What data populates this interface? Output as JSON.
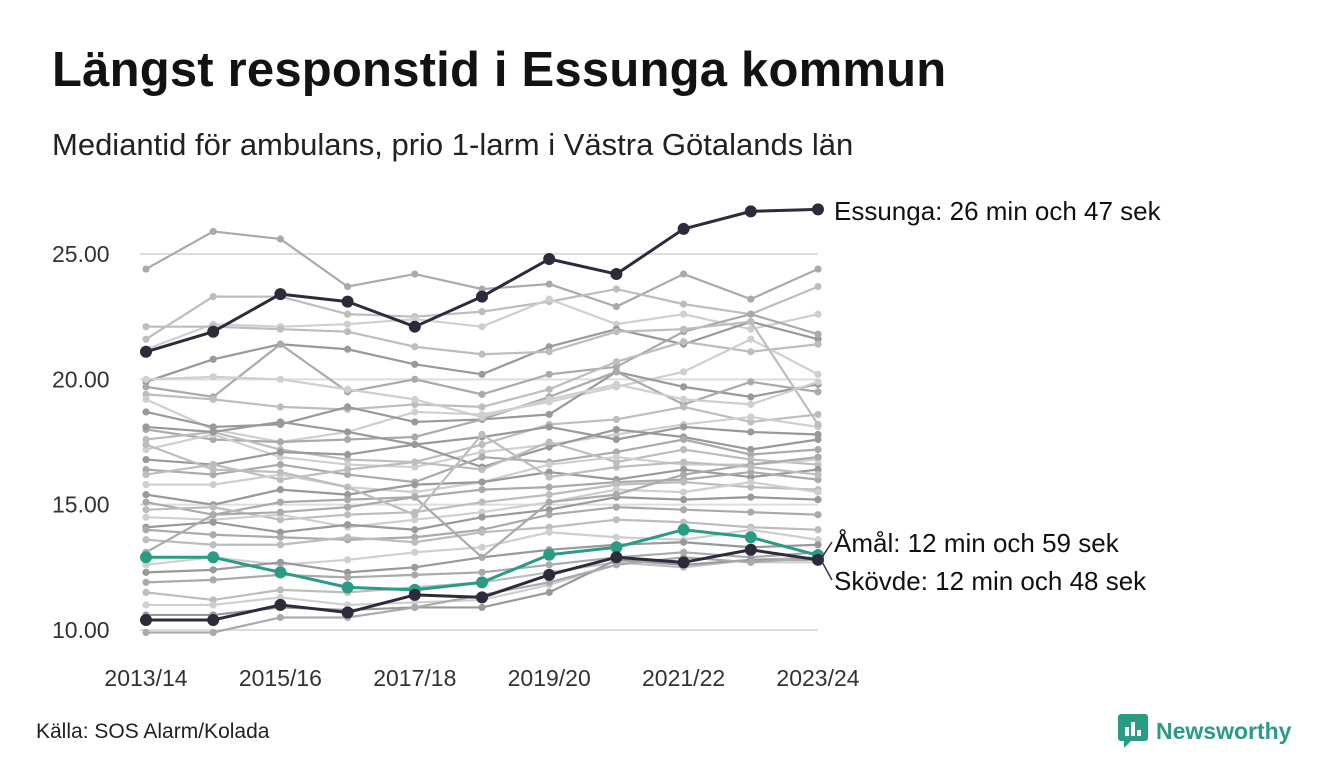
{
  "title": "Längst responstid i Essunga kommun",
  "subtitle": "Mediantid för ambulans, prio 1-larm i Västra Götalands län",
  "source": "Källa: SOS Alarm/Kolada",
  "brand": "Newsworthy",
  "colors": {
    "highlight_dark": "#2b2b3b",
    "highlight_teal": "#2a9b84",
    "background_lines": [
      "#aaaaaa",
      "#bdbdbd",
      "#cfcfcf",
      "#999999"
    ],
    "grid": "#dddddd",
    "brand": "#2a9b84"
  },
  "chart_data": {
    "type": "line",
    "x": [
      "2013/14",
      "2014/15",
      "2015/16",
      "2016/17",
      "2017/18",
      "2018/19",
      "2019/20",
      "2020/21",
      "2021/22",
      "2022/23",
      "2023/24"
    ],
    "x_tick_labels": [
      "2013/14",
      "2015/16",
      "2017/18",
      "2019/20",
      "2021/22",
      "2023/24"
    ],
    "ylim": [
      9.8,
      27.2
    ],
    "y_ticks": [
      "10.00",
      "15.00",
      "20.00",
      "25.00"
    ],
    "y_tick_values": [
      10,
      15,
      20,
      25
    ],
    "grid": "horizontal",
    "highlight_series": [
      {
        "name": "Essunga",
        "label": "Essunga: 26 min och 47 sek",
        "color": "#2b2b3b",
        "values": [
          21.1,
          21.9,
          23.4,
          23.1,
          22.1,
          23.3,
          24.8,
          24.2,
          26.0,
          26.7,
          26.78
        ]
      },
      {
        "name": "Åmål",
        "label": "Åmål: 12 min och 59 sek",
        "color": "#2a9b84",
        "values": [
          12.9,
          12.9,
          12.3,
          11.7,
          11.6,
          11.9,
          13.0,
          13.3,
          14.0,
          13.7,
          12.98
        ]
      },
      {
        "name": "Skövde",
        "label": "Skövde: 12 min och 48 sek",
        "color": "#2b2b3b",
        "values": [
          10.4,
          10.4,
          11.0,
          10.7,
          11.4,
          11.3,
          12.2,
          12.9,
          12.7,
          13.2,
          12.8
        ]
      }
    ],
    "background_series": [
      {
        "values": [
          24.4,
          25.9,
          25.6,
          23.7,
          24.2,
          23.6,
          23.8,
          22.9,
          24.2,
          23.2,
          24.4
        ]
      },
      {
        "values": [
          21.6,
          23.3,
          23.3,
          22.6,
          22.5,
          22.7,
          23.1,
          23.6,
          23.0,
          22.6,
          23.7
        ]
      },
      {
        "values": [
          21.2,
          22.2,
          22.1,
          22.2,
          22.4,
          22.1,
          23.2,
          22.2,
          22.6,
          22.0,
          22.6
        ]
      },
      {
        "values": [
          19.9,
          20.8,
          21.4,
          21.2,
          20.6,
          20.2,
          21.3,
          22.0,
          21.4,
          22.3,
          21.6
        ]
      },
      {
        "values": [
          19.7,
          19.3,
          21.4,
          19.5,
          20.0,
          19.4,
          20.2,
          20.5,
          21.9,
          22.6,
          21.8
        ]
      },
      {
        "values": [
          19.4,
          19.2,
          18.9,
          18.8,
          19.0,
          18.9,
          19.6,
          20.7,
          21.5,
          21.1,
          21.4
        ]
      },
      {
        "values": [
          19.2,
          18.0,
          17.5,
          17.9,
          18.7,
          18.6,
          19.1,
          19.7,
          20.3,
          21.6,
          20.2
        ]
      },
      {
        "values": [
          18.7,
          18.1,
          18.2,
          18.9,
          18.3,
          18.4,
          18.6,
          20.3,
          19.7,
          19.3,
          19.8
        ]
      },
      {
        "values": [
          18.0,
          17.6,
          17.5,
          17.6,
          17.7,
          18.4,
          19.3,
          20.3,
          19.0,
          19.9,
          19.5
        ]
      },
      {
        "values": [
          17.6,
          17.9,
          17.2,
          16.8,
          16.7,
          17.4,
          18.2,
          18.4,
          18.9,
          18.3,
          18.6
        ]
      },
      {
        "values": [
          17.2,
          17.8,
          16.9,
          16.6,
          16.5,
          17.1,
          17.4,
          17.8,
          18.2,
          18.5,
          18.1
        ]
      },
      {
        "values": [
          16.8,
          16.6,
          17.1,
          17.0,
          17.4,
          16.5,
          17.3,
          18.0,
          17.7,
          17.2,
          17.6
        ]
      },
      {
        "values": [
          16.4,
          16.2,
          16.6,
          16.2,
          15.9,
          16.9,
          16.7,
          17.1,
          17.6,
          17.0,
          17.2
        ]
      },
      {
        "values": [
          16.2,
          16.6,
          16.0,
          16.4,
          16.7,
          16.4,
          17.5,
          16.7,
          17.2,
          16.8,
          16.6
        ]
      },
      {
        "values": [
          15.8,
          15.8,
          16.2,
          15.7,
          15.5,
          15.9,
          16.6,
          16.9,
          16.6,
          16.6,
          16.8
        ]
      },
      {
        "values": [
          15.4,
          15.0,
          15.6,
          15.4,
          15.8,
          15.9,
          16.3,
          16.0,
          16.4,
          16.1,
          16.4
        ]
      },
      {
        "values": [
          15.1,
          14.6,
          15.1,
          15.2,
          15.3,
          15.6,
          15.7,
          15.9,
          16.0,
          16.3,
          16.0
        ]
      },
      {
        "values": [
          14.8,
          14.9,
          14.4,
          14.6,
          14.7,
          15.1,
          15.4,
          15.8,
          15.9,
          15.7,
          15.6
        ]
      },
      {
        "values": [
          14.5,
          14.4,
          14.6,
          14.1,
          14.4,
          14.7,
          15.1,
          15.6,
          15.5,
          15.9,
          15.5
        ]
      },
      {
        "values": [
          14.1,
          14.3,
          13.9,
          14.2,
          14.0,
          14.5,
          14.8,
          15.3,
          15.2,
          15.3,
          15.2
        ]
      },
      {
        "values": [
          14.0,
          13.8,
          13.7,
          13.6,
          13.7,
          14.0,
          14.6,
          14.9,
          14.8,
          14.7,
          14.6
        ]
      },
      {
        "values": [
          13.6,
          13.4,
          13.4,
          13.7,
          13.5,
          13.9,
          14.1,
          14.4,
          14.3,
          14.1,
          14.0
        ]
      },
      {
        "values": [
          12.6,
          12.9,
          12.6,
          12.8,
          13.1,
          13.3,
          13.9,
          13.7,
          13.6,
          14.0,
          13.6
        ]
      },
      {
        "values": [
          12.3,
          12.4,
          12.7,
          12.3,
          12.5,
          12.9,
          13.2,
          13.4,
          13.5,
          13.3,
          13.4
        ]
      },
      {
        "values": [
          11.9,
          12.0,
          12.2,
          12.1,
          12.2,
          12.3,
          12.6,
          12.9,
          13.1,
          12.9,
          13.1
        ]
      },
      {
        "values": [
          11.5,
          11.2,
          11.6,
          11.5,
          11.7,
          11.9,
          12.3,
          12.7,
          12.5,
          12.8,
          12.9
        ]
      },
      {
        "values": [
          11.0,
          11.0,
          11.3,
          11.0,
          11.1,
          11.2,
          11.8,
          12.6,
          12.9,
          12.7,
          12.7
        ]
      },
      {
        "values": [
          10.6,
          10.6,
          10.9,
          10.8,
          10.9,
          10.9,
          11.5,
          12.8,
          12.6,
          12.8,
          12.8
        ]
      },
      {
        "values": [
          9.9,
          9.9,
          10.5,
          10.5,
          10.9,
          11.4,
          11.9,
          12.6,
          12.9,
          12.7,
          12.9
        ]
      },
      {
        "values": [
          22.1,
          22.1,
          22.0,
          21.9,
          21.3,
          21.0,
          21.1,
          21.9,
          22.0,
          22.3,
          18.2
        ]
      },
      {
        "values": [
          20.0,
          20.1,
          20.0,
          19.6,
          19.2,
          18.5,
          19.2,
          19.8,
          19.2,
          19.0,
          19.9
        ]
      },
      {
        "values": [
          18.1,
          17.9,
          18.3,
          17.9,
          17.4,
          17.7,
          18.1,
          17.6,
          18.1,
          17.9,
          17.8
        ]
      },
      {
        "values": [
          13.1,
          14.6,
          14.7,
          14.9,
          15.3,
          12.9,
          15.1,
          15.4,
          16.2,
          16.6,
          16.9
        ]
      },
      {
        "values": [
          17.4,
          16.4,
          16.3,
          15.7,
          14.6,
          17.8,
          16.1,
          16.5,
          16.7,
          16.5,
          16.2
        ]
      }
    ]
  }
}
